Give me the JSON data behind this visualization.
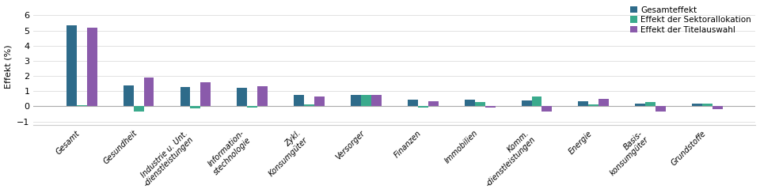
{
  "categories": [
    "Gesamt",
    "Gesundheit",
    "Industrie u. Unt.\n-dienstleistungen",
    "Information-\nstechnologie",
    "Zykl.\nKonsumgüter",
    "Versorger",
    "Finanzen",
    "Immobilien",
    "Komm.\n-dienstleistungen",
    "Energie",
    "Basis-\nkonsumgüter",
    "Grundstoffe"
  ],
  "gesamteffekt": [
    5.35,
    1.4,
    1.25,
    1.2,
    0.75,
    0.75,
    0.45,
    0.45,
    0.4,
    0.35,
    0.2,
    0.2
  ],
  "sektorallokation": [
    0.07,
    -0.35,
    -0.15,
    -0.08,
    0.12,
    0.75,
    -0.07,
    0.3,
    0.65,
    0.1,
    0.3,
    0.2
  ],
  "titelauswahl": [
    5.2,
    1.9,
    1.6,
    1.35,
    0.65,
    0.75,
    0.35,
    -0.07,
    -0.35,
    0.5,
    -0.35,
    -0.2
  ],
  "color_gesamt": "#2e6b8a",
  "color_sektor": "#3aaa8c",
  "color_titel": "#8a5aab",
  "ylabel": "Effekt (%)",
  "ylim": [
    -1.25,
    6.5
  ],
  "yticks": [
    -1,
    0,
    1,
    2,
    3,
    4,
    5,
    6
  ],
  "legend_labels": [
    "Gesamteffekt",
    "Effekt der Sektorallokation",
    "Effekt der Titelauswahl"
  ],
  "bar_width": 0.18,
  "figsize": [
    9.6,
    2.44
  ],
  "dpi": 100
}
